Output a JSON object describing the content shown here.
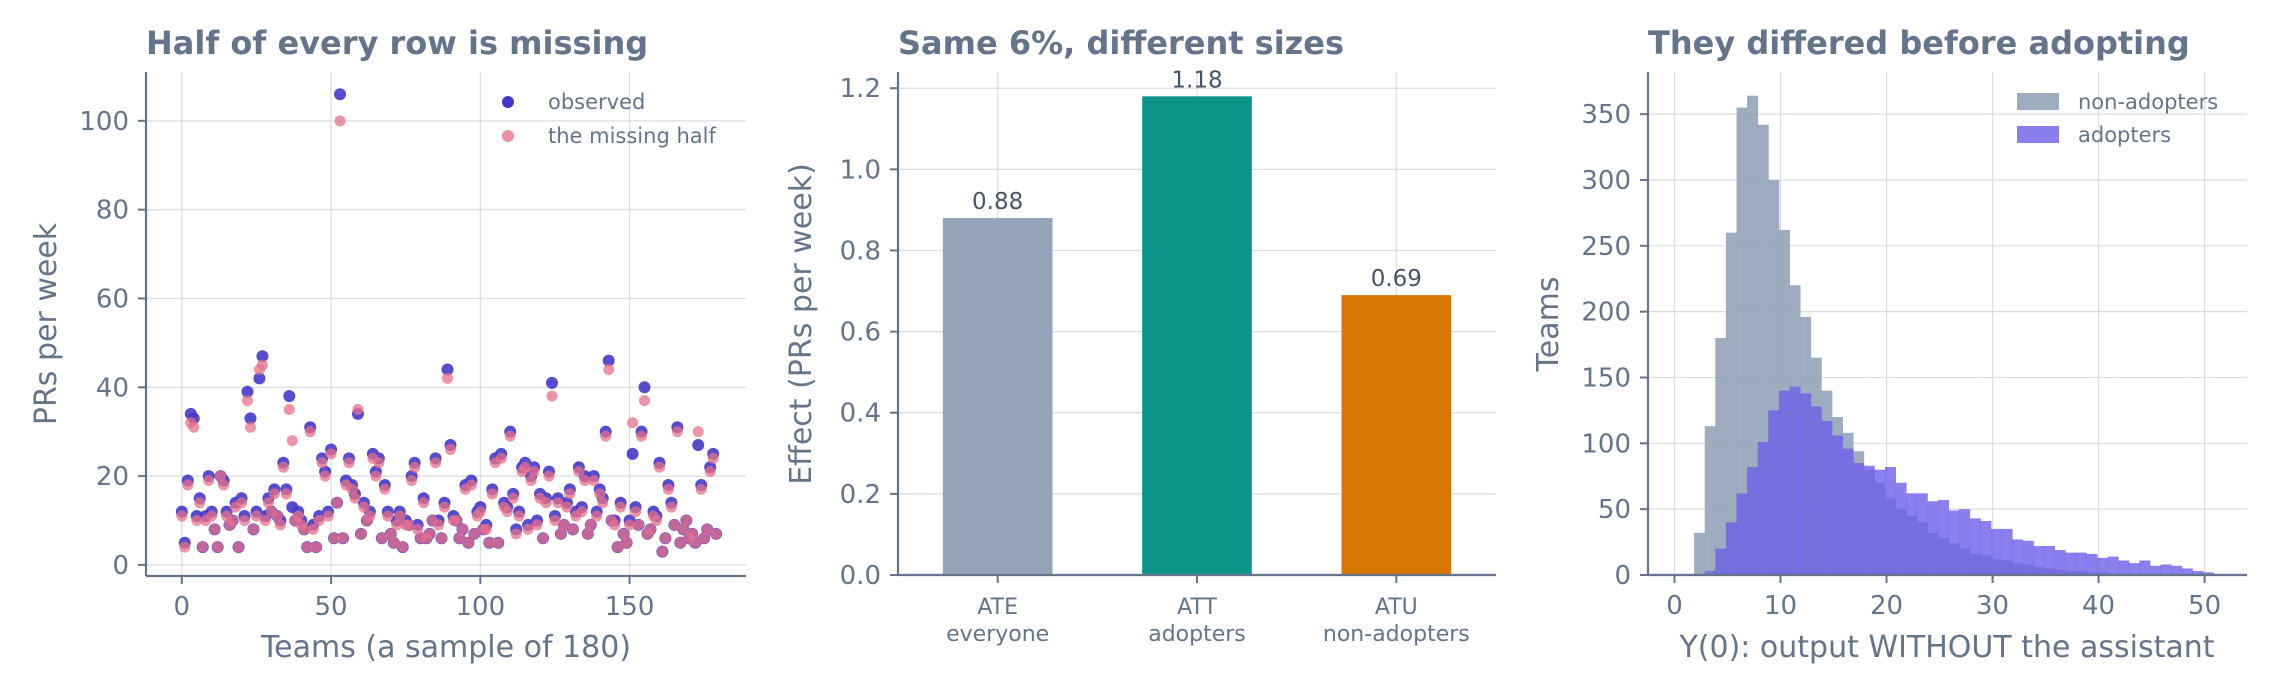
{
  "colors": {
    "text": "#64748b",
    "grid": "#d9dde3",
    "observed": "#4338ca",
    "missing": "#e8708a",
    "ate": "#94a3b8",
    "att": "#0d9488",
    "atu": "#d97706",
    "nonadopters": "#94a3b8",
    "adopters": "#6d5fe8"
  },
  "chart_data": [
    {
      "type": "scatter",
      "title": "Half of every row is missing",
      "xlabel": "Teams (a sample of 180)",
      "ylabel": "PRs per week",
      "xlim": [
        -12,
        189
      ],
      "ylim": [
        -2.5,
        111
      ],
      "xticks": [
        "0",
        "50",
        "100",
        "150"
      ],
      "xtick_values": [
        0,
        50,
        100,
        150
      ],
      "yticks": [
        "0",
        "20",
        "40",
        "60",
        "80",
        "100"
      ],
      "ytick_values": [
        0,
        20,
        40,
        60,
        80,
        100
      ],
      "grid": true,
      "legend_position": "upper right",
      "legend": [
        "observed",
        "the missing half"
      ],
      "series": [
        {
          "name": "observed",
          "x": [
            0,
            1,
            2,
            3,
            4,
            5,
            6,
            7,
            8,
            9,
            10,
            11,
            12,
            13,
            14,
            15,
            16,
            17,
            18,
            19,
            20,
            21,
            22,
            23,
            24,
            25,
            26,
            27,
            28,
            29,
            30,
            31,
            32,
            33,
            34,
            35,
            36,
            37,
            38,
            39,
            40,
            41,
            42,
            43,
            44,
            45,
            46,
            47,
            48,
            49,
            50,
            51,
            52,
            53,
            54,
            55,
            56,
            57,
            58,
            59,
            60,
            61,
            62,
            63,
            64,
            65,
            66,
            67,
            68,
            69,
            70,
            71,
            72,
            73,
            74,
            75,
            76,
            77,
            78,
            79,
            80,
            81,
            82,
            83,
            84,
            85,
            86,
            87,
            88,
            89,
            90,
            91,
            92,
            93,
            94,
            95,
            96,
            97,
            98,
            99,
            100,
            101,
            102,
            103,
            104,
            105,
            106,
            107,
            108,
            109,
            110,
            111,
            112,
            113,
            114,
            115,
            116,
            117,
            118,
            119,
            120,
            121,
            122,
            123,
            124,
            125,
            126,
            127,
            128,
            129,
            130,
            131,
            132,
            133,
            134,
            135,
            136,
            137,
            138,
            139,
            140,
            141,
            142,
            143,
            144,
            145,
            146,
            147,
            148,
            149,
            150,
            151,
            152,
            153,
            154,
            155,
            156,
            157,
            158,
            159,
            160,
            161,
            162,
            163,
            164,
            165,
            166,
            167,
            168,
            169,
            170,
            171,
            172,
            173,
            174,
            175,
            176,
            177,
            178,
            179
          ],
          "y": [
            12,
            5,
            19,
            34,
            33,
            11,
            15,
            4,
            11,
            20,
            12,
            8,
            4,
            20,
            19,
            12,
            9,
            10,
            14,
            4,
            15,
            11,
            39,
            33,
            8,
            12,
            42,
            47,
            11,
            15,
            12,
            17,
            11,
            10,
            23,
            17,
            38,
            13,
            10,
            12,
            10,
            8,
            4,
            31,
            9,
            4,
            11,
            24,
            21,
            12,
            26,
            6,
            14,
            106,
            6,
            19,
            24,
            18,
            16,
            34,
            7,
            14,
            10,
            12,
            25,
            21,
            24,
            6,
            18,
            12,
            7,
            5,
            10,
            12,
            4,
            10,
            9,
            20,
            23,
            9,
            6,
            15,
            6,
            7,
            10,
            24,
            10,
            6,
            14,
            44,
            27,
            11,
            10,
            6,
            8,
            18,
            5,
            19,
            7,
            12,
            13,
            8,
            9,
            5,
            17,
            24,
            5,
            25,
            14,
            13,
            30,
            16,
            8,
            12,
            22,
            23,
            9,
            20,
            22,
            10,
            16,
            6,
            15,
            21,
            41,
            11,
            15,
            7,
            9,
            14,
            17,
            8,
            12,
            22,
            13,
            20,
            7,
            9,
            20,
            12,
            17,
            15,
            30,
            46,
            10,
            10,
            4,
            14,
            7,
            5,
            10,
            25,
            13,
            9,
            30,
            40,
            7,
            8,
            12,
            11,
            23,
            3,
            6,
            18,
            14,
            9,
            31,
            5,
            8,
            10,
            6,
            7,
            5,
            27,
            18,
            6,
            8,
            22,
            25,
            7
          ]
        },
        {
          "name": "the missing half",
          "x": [
            0,
            1,
            2,
            3,
            4,
            5,
            6,
            7,
            8,
            9,
            10,
            11,
            12,
            13,
            14,
            15,
            16,
            17,
            18,
            19,
            20,
            21,
            22,
            23,
            24,
            25,
            26,
            27,
            28,
            29,
            30,
            31,
            32,
            33,
            34,
            35,
            36,
            37,
            38,
            39,
            40,
            41,
            42,
            43,
            44,
            45,
            46,
            47,
            48,
            49,
            50,
            51,
            52,
            53,
            54,
            55,
            56,
            57,
            58,
            59,
            60,
            61,
            62,
            63,
            64,
            65,
            66,
            67,
            68,
            69,
            70,
            71,
            72,
            73,
            74,
            75,
            76,
            77,
            78,
            79,
            80,
            81,
            82,
            83,
            84,
            85,
            86,
            87,
            88,
            89,
            90,
            91,
            92,
            93,
            94,
            95,
            96,
            97,
            98,
            99,
            100,
            101,
            102,
            103,
            104,
            105,
            106,
            107,
            108,
            109,
            110,
            111,
            112,
            113,
            114,
            115,
            116,
            117,
            118,
            119,
            120,
            121,
            122,
            123,
            124,
            125,
            126,
            127,
            128,
            129,
            130,
            131,
            132,
            133,
            134,
            135,
            136,
            137,
            138,
            139,
            140,
            141,
            142,
            143,
            144,
            145,
            146,
            147,
            148,
            149,
            150,
            151,
            152,
            153,
            154,
            155,
            156,
            157,
            158,
            159,
            160,
            161,
            162,
            163,
            164,
            165,
            166,
            167,
            168,
            169,
            170,
            171,
            172,
            173,
            174,
            175,
            176,
            177,
            178,
            179
          ],
          "y": [
            11,
            4,
            18,
            32,
            31,
            10,
            14,
            4,
            10,
            19,
            11,
            8,
            4,
            20,
            18,
            11,
            9,
            10,
            13,
            4,
            14,
            10,
            37,
            31,
            8,
            11,
            44,
            45,
            10,
            14,
            12,
            16,
            11,
            9,
            22,
            16,
            35,
            28,
            10,
            11,
            9,
            8,
            4,
            30,
            8,
            4,
            10,
            23,
            20,
            11,
            25,
            6,
            14,
            100,
            6,
            18,
            23,
            17,
            15,
            35,
            7,
            13,
            10,
            11,
            24,
            20,
            23,
            6,
            17,
            11,
            7,
            5,
            9,
            11,
            4,
            9,
            9,
            19,
            22,
            8,
            6,
            14,
            6,
            7,
            10,
            23,
            9,
            6,
            13,
            42,
            26,
            10,
            10,
            6,
            8,
            17,
            5,
            18,
            7,
            11,
            12,
            8,
            8,
            5,
            16,
            23,
            5,
            24,
            13,
            12,
            29,
            15,
            7,
            11,
            21,
            22,
            8,
            19,
            21,
            9,
            15,
            6,
            14,
            20,
            38,
            10,
            14,
            7,
            9,
            13,
            16,
            8,
            11,
            21,
            12,
            19,
            7,
            9,
            19,
            11,
            16,
            14,
            29,
            44,
            10,
            9,
            4,
            13,
            7,
            5,
            9,
            32,
            12,
            9,
            29,
            37,
            7,
            8,
            11,
            10,
            22,
            3,
            6,
            17,
            13,
            9,
            30,
            5,
            8,
            10,
            6,
            7,
            5,
            30,
            17,
            6,
            8,
            21,
            24,
            7
          ]
        }
      ]
    },
    {
      "type": "bar",
      "title": "Same 6%, different sizes",
      "ylabel": "Effect (PRs per week)",
      "ylim": [
        0,
        1.24
      ],
      "yticks": [
        "0.0",
        "0.2",
        "0.4",
        "0.6",
        "0.8",
        "1.0",
        "1.2"
      ],
      "ytick_values": [
        0,
        0.2,
        0.4,
        0.6,
        0.8,
        1.0,
        1.2
      ],
      "grid": true,
      "categories": [
        {
          "line1": "ATE",
          "line2": "everyone"
        },
        {
          "line1": "ATT",
          "line2": "adopters"
        },
        {
          "line1": "ATU",
          "line2": "non-adopters"
        }
      ],
      "values": [
        0.88,
        1.18,
        0.69
      ],
      "data_labels": [
        "0.88",
        "1.18",
        "0.69"
      ]
    },
    {
      "type": "histogram",
      "title": "They differed before adopting",
      "xlabel": "Y(0): output WITHOUT the assistant",
      "ylabel": "Teams",
      "xlim": [
        -2.5,
        54
      ],
      "ylim": [
        0,
        382
      ],
      "xticks": [
        "0",
        "10",
        "20",
        "30",
        "40",
        "50"
      ],
      "xtick_values": [
        0,
        10,
        20,
        30,
        40,
        50
      ],
      "yticks": [
        "0",
        "50",
        "100",
        "150",
        "200",
        "250",
        "300",
        "350"
      ],
      "ytick_values": [
        0,
        50,
        100,
        150,
        200,
        250,
        300,
        350
      ],
      "grid": true,
      "legend_position": "upper right",
      "legend": [
        "non-adopters",
        "adopters"
      ],
      "bin_start": 1.85,
      "bin_width": 1.0,
      "series": [
        {
          "name": "non-adopters",
          "counts": [
            32,
            113,
            180,
            260,
            355,
            364,
            342,
            300,
            262,
            220,
            196,
            165,
            140,
            120,
            108,
            94,
            80,
            70,
            58,
            50,
            45,
            40,
            32,
            28,
            24,
            20,
            16,
            15,
            12,
            11,
            9,
            8,
            6,
            5,
            4,
            3,
            3,
            2,
            2,
            1,
            1,
            1,
            1,
            0,
            0,
            0,
            0,
            0,
            0,
            0
          ]
        },
        {
          "name": "adopters",
          "counts": [
            0,
            3,
            20,
            40,
            62,
            82,
            101,
            125,
            140,
            143,
            138,
            128,
            117,
            106,
            96,
            85,
            83,
            80,
            82,
            70,
            62,
            62,
            56,
            57,
            49,
            50,
            43,
            41,
            35,
            35,
            27,
            26,
            22,
            22,
            19,
            17,
            17,
            16,
            13,
            14,
            11,
            9,
            11,
            7,
            8,
            7,
            5,
            3,
            2,
            0
          ]
        }
      ]
    }
  ]
}
